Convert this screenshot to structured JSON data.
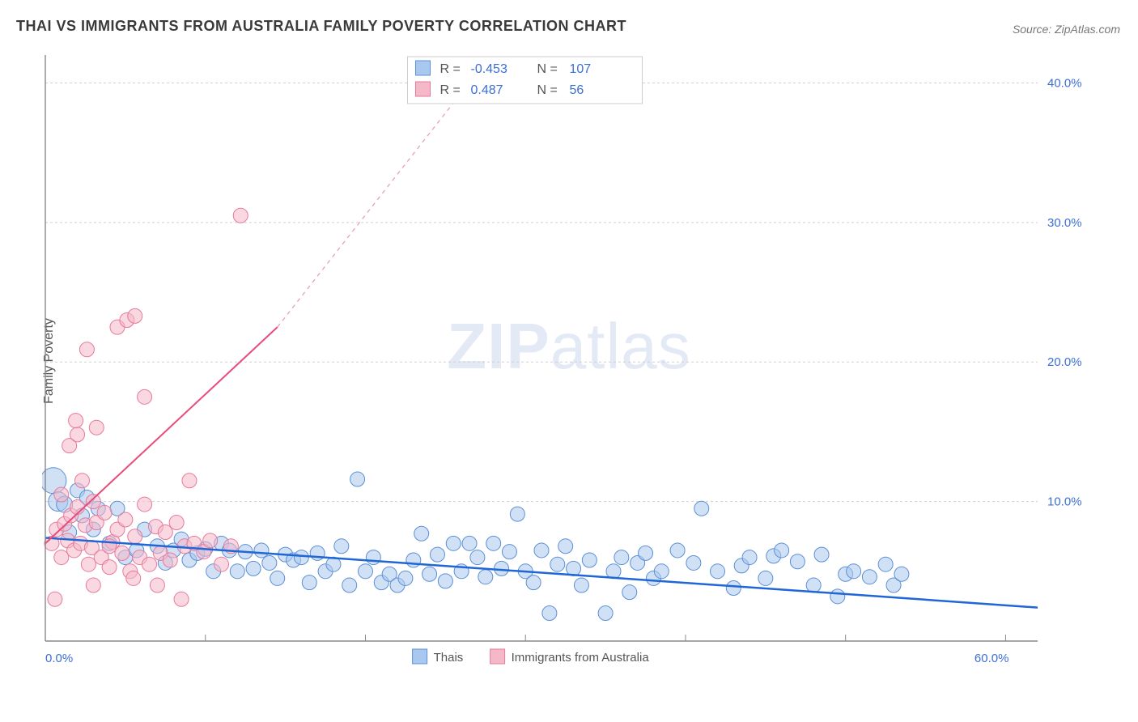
{
  "title": "THAI VS IMMIGRANTS FROM AUSTRALIA FAMILY POVERTY CORRELATION CHART",
  "source": "Source: ZipAtlas.com",
  "ylabel": "Family Poverty",
  "watermark": {
    "zip": "ZIP",
    "atlas": "atlas"
  },
  "chart": {
    "type": "scatter",
    "background_color": "#ffffff",
    "grid_color": "#d0d0d0",
    "axis_color": "#888888",
    "xlim": [
      0,
      62
    ],
    "ylim": [
      0,
      42
    ],
    "x_ticks": [
      0,
      10,
      20,
      30,
      40,
      50,
      60
    ],
    "x_tick_labels": [
      "0.0%",
      "",
      "",
      "",
      "",
      "",
      "60.0%"
    ],
    "y_ticks": [
      10,
      20,
      30,
      40
    ],
    "y_tick_labels": [
      "10.0%",
      "20.0%",
      "30.0%",
      "40.0%"
    ],
    "label_color": "#3b6fd6",
    "label_fontsize": 15,
    "series": [
      {
        "name": "Thais",
        "fill": "#a9c8ef",
        "fill_opacity": 0.55,
        "stroke": "#5c8fd6",
        "stroke_width": 1,
        "marker_radius": 9,
        "regression": {
          "x1": 0,
          "y1": 7.4,
          "x2": 62,
          "y2": 2.4,
          "color": "#1f66d6",
          "width": 2.5,
          "dash": "none"
        },
        "points": [
          [
            0.5,
            11.5,
            16
          ],
          [
            0.8,
            10.0,
            12
          ],
          [
            1.2,
            9.8,
            10
          ],
          [
            1.5,
            7.8,
            9
          ],
          [
            2.0,
            10.8,
            9
          ],
          [
            2.3,
            9.0,
            9
          ],
          [
            2.6,
            10.3,
            9
          ],
          [
            3.0,
            8.0,
            9
          ],
          [
            3.3,
            9.5,
            9
          ],
          [
            4.0,
            7.0,
            9
          ],
          [
            4.5,
            9.5,
            9
          ],
          [
            5.0,
            6.0,
            9
          ],
          [
            5.7,
            6.5,
            9
          ],
          [
            6.2,
            8.0,
            9
          ],
          [
            7,
            6.8,
            9
          ],
          [
            7.5,
            5.6,
            9
          ],
          [
            8,
            6.5,
            9
          ],
          [
            8.5,
            7.3,
            9
          ],
          [
            9,
            5.8,
            9
          ],
          [
            9.5,
            6.3,
            9
          ],
          [
            10,
            6.6,
            9
          ],
          [
            10.5,
            5.0,
            9
          ],
          [
            11,
            7.0,
            9
          ],
          [
            11.5,
            6.5,
            9
          ],
          [
            12,
            5.0,
            9
          ],
          [
            12.5,
            6.4,
            9
          ],
          [
            13,
            5.2,
            9
          ],
          [
            13.5,
            6.5,
            9
          ],
          [
            14,
            5.6,
            9
          ],
          [
            14.5,
            4.5,
            9
          ],
          [
            15,
            6.2,
            9
          ],
          [
            15.5,
            5.8,
            9
          ],
          [
            16,
            6.0,
            9
          ],
          [
            16.5,
            4.2,
            9
          ],
          [
            17,
            6.3,
            9
          ],
          [
            17.5,
            5.0,
            9
          ],
          [
            18,
            5.5,
            9
          ],
          [
            18.5,
            6.8,
            9
          ],
          [
            19,
            4.0,
            9
          ],
          [
            19.5,
            11.6,
            9
          ],
          [
            20,
            5.0,
            9
          ],
          [
            20.5,
            6.0,
            9
          ],
          [
            21,
            4.2,
            9
          ],
          [
            21.5,
            4.8,
            9
          ],
          [
            22,
            4.0,
            9
          ],
          [
            22.5,
            4.5,
            9
          ],
          [
            23,
            5.8,
            9
          ],
          [
            23.5,
            7.7,
            9
          ],
          [
            24,
            4.8,
            9
          ],
          [
            24.5,
            6.2,
            9
          ],
          [
            25,
            4.3,
            9
          ],
          [
            25.5,
            7.0,
            9
          ],
          [
            26,
            5.0,
            9
          ],
          [
            26.5,
            7.0,
            9
          ],
          [
            27,
            6.0,
            9
          ],
          [
            27.5,
            4.6,
            9
          ],
          [
            28,
            7.0,
            9
          ],
          [
            28.5,
            5.2,
            9
          ],
          [
            29,
            6.4,
            9
          ],
          [
            29.5,
            9.1,
            9
          ],
          [
            30,
            5.0,
            9
          ],
          [
            30.5,
            4.2,
            9
          ],
          [
            31,
            6.5,
            9
          ],
          [
            31.5,
            2.0,
            9
          ],
          [
            32,
            5.5,
            9
          ],
          [
            32.5,
            6.8,
            9
          ],
          [
            33,
            5.2,
            9
          ],
          [
            33.5,
            4.0,
            9
          ],
          [
            34,
            5.8,
            9
          ],
          [
            35,
            2.0,
            9
          ],
          [
            35.5,
            5.0,
            9
          ],
          [
            36,
            6.0,
            9
          ],
          [
            36.5,
            3.5,
            9
          ],
          [
            37,
            5.6,
            9
          ],
          [
            37.5,
            6.3,
            9
          ],
          [
            38,
            4.5,
            9
          ],
          [
            38.5,
            5.0,
            9
          ],
          [
            39.5,
            6.5,
            9
          ],
          [
            40.5,
            5.6,
            9
          ],
          [
            41,
            9.5,
            9
          ],
          [
            42,
            5.0,
            9
          ],
          [
            43,
            3.8,
            9
          ],
          [
            43.5,
            5.4,
            9
          ],
          [
            44,
            6.0,
            9
          ],
          [
            45,
            4.5,
            9
          ],
          [
            45.5,
            6.1,
            9
          ],
          [
            46,
            6.5,
            9
          ],
          [
            47,
            5.7,
            9
          ],
          [
            48,
            4.0,
            9
          ],
          [
            48.5,
            6.2,
            9
          ],
          [
            49.5,
            3.2,
            9
          ],
          [
            50,
            4.8,
            9
          ],
          [
            50.5,
            5.0,
            9
          ],
          [
            51.5,
            4.6,
            9
          ],
          [
            52.5,
            5.5,
            9
          ],
          [
            53,
            4.0,
            9
          ],
          [
            53.5,
            4.8,
            9
          ]
        ]
      },
      {
        "name": "Immigrants from Australia",
        "fill": "#f5b8c8",
        "fill_opacity": 0.55,
        "stroke": "#e77a9a",
        "stroke_width": 1,
        "marker_radius": 9,
        "regression_solid": {
          "x1": 0,
          "y1": 7.0,
          "x2": 14.5,
          "y2": 22.5,
          "color": "#e94b7a",
          "width": 2,
          "dash": "none"
        },
        "regression_dash": {
          "x1": 14.5,
          "y1": 22.5,
          "x2": 27.5,
          "y2": 41.5,
          "color": "#e9a0b5",
          "width": 1.3,
          "dash": "5,5"
        },
        "points": [
          [
            0.4,
            7.0,
            9
          ],
          [
            0.7,
            8.0,
            9
          ],
          [
            1.0,
            6.0,
            9
          ],
          [
            1.2,
            8.4,
            9
          ],
          [
            1.4,
            7.2,
            9
          ],
          [
            1.6,
            9.0,
            9
          ],
          [
            1.8,
            6.5,
            9
          ],
          [
            0.6,
            3.0,
            9
          ],
          [
            2.0,
            9.6,
            9
          ],
          [
            2.2,
            7.0,
            9
          ],
          [
            2.5,
            8.3,
            9
          ],
          [
            2.7,
            5.5,
            9
          ],
          [
            2.9,
            6.7,
            9
          ],
          [
            1.0,
            10.5,
            9
          ],
          [
            3.0,
            4.0,
            9
          ],
          [
            3.2,
            8.5,
            9
          ],
          [
            3.5,
            6.0,
            9
          ],
          [
            3.7,
            9.2,
            9
          ],
          [
            1.5,
            14.0,
            9
          ],
          [
            4.0,
            5.3,
            9
          ],
          [
            4.2,
            7.1,
            9
          ],
          [
            2.0,
            14.8,
            9
          ],
          [
            4.5,
            8.0,
            9
          ],
          [
            4.8,
            6.3,
            9
          ],
          [
            5.0,
            8.7,
            9
          ],
          [
            3.2,
            15.3,
            9
          ],
          [
            5.3,
            5.0,
            9
          ],
          [
            5.6,
            7.5,
            9
          ],
          [
            2.6,
            20.9,
            9
          ],
          [
            5.9,
            6.0,
            9
          ],
          [
            4.5,
            22.5,
            9
          ],
          [
            6.2,
            9.8,
            9
          ],
          [
            6.5,
            5.5,
            9
          ],
          [
            5.1,
            23.0,
            9
          ],
          [
            6.9,
            8.2,
            9
          ],
          [
            5.6,
            23.3,
            9
          ],
          [
            7.2,
            6.3,
            9
          ],
          [
            7.5,
            7.8,
            9
          ],
          [
            6.2,
            17.5,
            9
          ],
          [
            7.8,
            5.8,
            9
          ],
          [
            8.2,
            8.5,
            9
          ],
          [
            8.7,
            6.8,
            9
          ],
          [
            9.0,
            11.5,
            9
          ],
          [
            9.3,
            7.0,
            9
          ],
          [
            9.9,
            6.4,
            9
          ],
          [
            8.5,
            3.0,
            9
          ],
          [
            10.3,
            7.2,
            9
          ],
          [
            11.0,
            5.5,
            9
          ],
          [
            7.0,
            4.0,
            9
          ],
          [
            11.6,
            6.8,
            9
          ],
          [
            12.2,
            30.5,
            9
          ],
          [
            5.5,
            4.5,
            9
          ],
          [
            4.0,
            6.8,
            9
          ],
          [
            3.0,
            10.0,
            9
          ],
          [
            2.3,
            11.5,
            9
          ],
          [
            1.9,
            15.8,
            9
          ]
        ]
      }
    ],
    "stats_box": {
      "rows": [
        {
          "swatch_fill": "#a9c8ef",
          "swatch_stroke": "#5c8fd6",
          "R_label": "R =",
          "R": "-0.453",
          "N_label": "N =",
          "N": "107"
        },
        {
          "swatch_fill": "#f5b8c8",
          "swatch_stroke": "#e77a9a",
          "R_label": "R =",
          "R": "0.487",
          "N_label": "N =",
          "N": "56"
        }
      ],
      "label_color": "#555555",
      "value_color": "#3b6fd6"
    },
    "bottom_legend": {
      "items": [
        {
          "swatch_fill": "#a9c8ef",
          "swatch_stroke": "#5c8fd6",
          "label": "Thais"
        },
        {
          "swatch_fill": "#f5b8c8",
          "swatch_stroke": "#e77a9a",
          "label": "Immigrants from Australia"
        }
      ]
    }
  }
}
